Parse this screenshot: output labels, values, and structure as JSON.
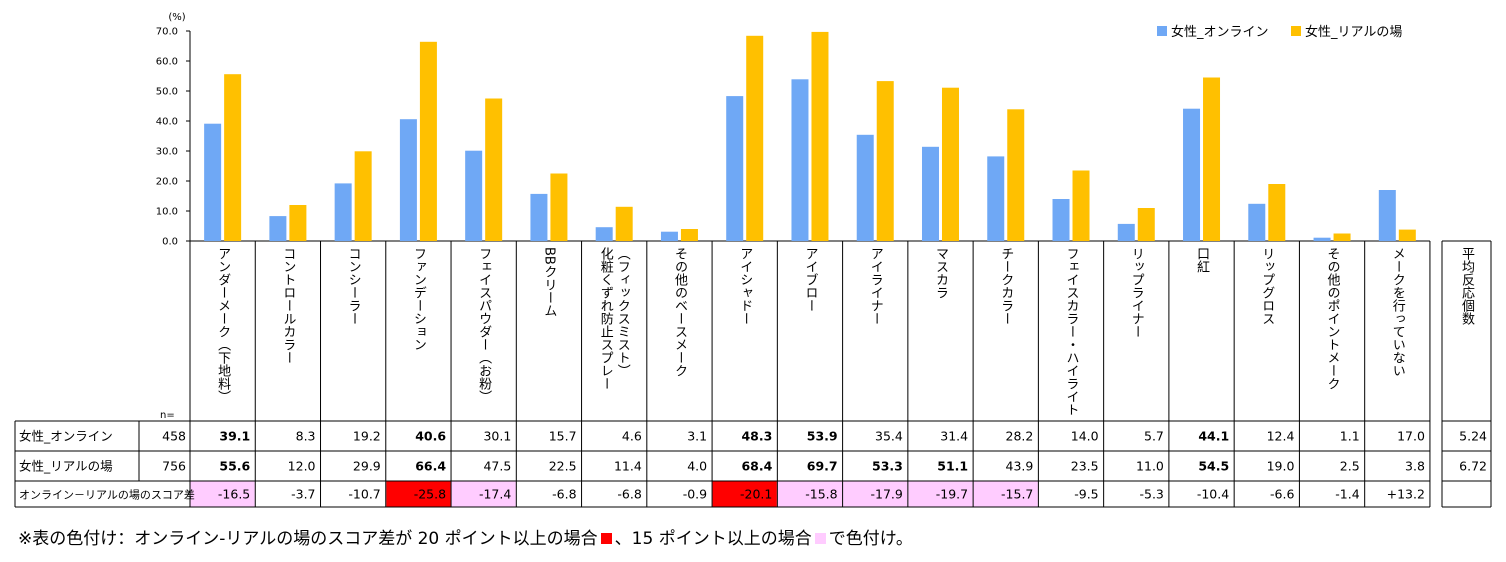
{
  "chart_data": {
    "type": "bar",
    "yunit": "(%)",
    "ylim": [
      0,
      70
    ],
    "yticks": [
      "0.0",
      "10.0",
      "20.0",
      "30.0",
      "40.0",
      "50.0",
      "60.0",
      "70.0"
    ],
    "categories": [
      "アンダーメーク（下地料）",
      "コントロールカラー",
      "コンシーラー",
      "ファンデーション",
      "フェイスパウダー（お粉）",
      "BBクリーム",
      "化粧くずれ防止スプレー（フィックスミスト）",
      "その他のベースメーク",
      "アイシャドー",
      "アイブロー",
      "アイライナー",
      "マスカラ",
      "チークカラー",
      "フェイスカラー・ハイライト",
      "リップライナー",
      "口紅",
      "リップグロス",
      "その他のポイントメーク",
      "メークを行っていない"
    ],
    "series": [
      {
        "name": "女性_オンライン",
        "color": "#6fa8f5",
        "values": [
          39.1,
          8.3,
          19.2,
          40.6,
          30.1,
          15.7,
          4.6,
          3.1,
          48.3,
          53.9,
          35.4,
          31.4,
          28.2,
          14.0,
          5.7,
          44.1,
          12.4,
          1.1,
          17.0
        ]
      },
      {
        "name": "女性_リアルの場",
        "color": "#ffc000",
        "values": [
          55.6,
          12.0,
          29.9,
          66.4,
          47.5,
          22.5,
          11.4,
          4.0,
          68.4,
          69.7,
          53.3,
          51.1,
          43.9,
          23.5,
          11.0,
          54.5,
          19.0,
          2.5,
          3.8
        ]
      }
    ],
    "legend_position": "top-right",
    "avg_label": "平均反応個数",
    "n_label": "n=",
    "table": {
      "rows": [
        {
          "label": "女性_オンライン",
          "n": "458",
          "cells": [
            "39.1",
            "8.3",
            "19.2",
            "40.6",
            "30.1",
            "15.7",
            "4.6",
            "3.1",
            "48.3",
            "53.9",
            "35.4",
            "31.4",
            "28.2",
            "14.0",
            "5.7",
            "44.1",
            "12.4",
            "1.1",
            "17.0"
          ],
          "bold": [
            true,
            false,
            false,
            true,
            false,
            false,
            false,
            false,
            true,
            true,
            false,
            false,
            false,
            false,
            false,
            true,
            false,
            false,
            false
          ],
          "avg": "5.24"
        },
        {
          "label": "女性_リアルの場",
          "n": "756",
          "cells": [
            "55.6",
            "12.0",
            "29.9",
            "66.4",
            "47.5",
            "22.5",
            "11.4",
            "4.0",
            "68.4",
            "69.7",
            "53.3",
            "51.1",
            "43.9",
            "23.5",
            "11.0",
            "54.5",
            "19.0",
            "2.5",
            "3.8"
          ],
          "bold": [
            true,
            false,
            false,
            true,
            false,
            false,
            false,
            false,
            true,
            true,
            true,
            true,
            false,
            false,
            false,
            true,
            false,
            false,
            false
          ],
          "avg": "6.72"
        },
        {
          "label": "オンライン－リアルの場のスコア差",
          "n": "",
          "cells": [
            "-16.5",
            "-3.7",
            "-10.7",
            "-25.8",
            "-17.4",
            "-6.8",
            "-6.8",
            "-0.9",
            "-20.1",
            "-15.8",
            "-17.9",
            "-19.7",
            "-15.7",
            "-9.5",
            "-5.3",
            "-10.4",
            "-6.6",
            "-1.4",
            "+13.2"
          ],
          "highlight": [
            "pink",
            "",
            "",
            "red",
            "pink",
            "",
            "",
            "",
            "red",
            "pink",
            "pink",
            "pink",
            "pink",
            "",
            "",
            "",
            "",
            "",
            ""
          ],
          "avg": ""
        }
      ]
    },
    "colors": {
      "red": "#ff0000",
      "pink": "#ffccff"
    }
  },
  "footnote": {
    "part1": "※表の色付け：オンライン-リアルの場のスコア差が 20 ポイント以上の場合",
    "part2": "、15 ポイント以上の場合",
    "part3": "で色付け。"
  }
}
